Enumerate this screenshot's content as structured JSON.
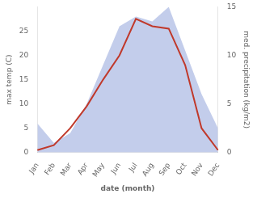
{
  "chart_data": {
    "type": "line",
    "xlabel": "date (month)",
    "ylabel": "max temp (C)",
    "y2label": "med. precipitation (kg/m2)",
    "categories": [
      "Jan",
      "Feb",
      "Mar",
      "Apr",
      "May",
      "Jun",
      "Jul",
      "Aug",
      "Sep",
      "Oct",
      "Nov",
      "Dec"
    ],
    "series": [
      {
        "type": "area",
        "color": "#b8c4e8",
        "axis": "y2",
        "values": [
          3.0,
          1.0,
          2.0,
          5.0,
          9.0,
          13.0,
          14.0,
          13.5,
          15.0,
          10.5,
          6.0,
          2.5
        ]
      },
      {
        "type": "line",
        "color": "#c0392b",
        "values": [
          0.5,
          1.5,
          5.0,
          9.5,
          15.0,
          20.0,
          27.5,
          26.0,
          25.5,
          18.0,
          5.0,
          0.5
        ]
      }
    ],
    "ylim": [
      0,
      30
    ],
    "yticks": [
      0,
      5,
      10,
      15,
      20,
      25
    ],
    "y2lim": [
      0,
      15
    ],
    "y2ticks": [
      0,
      5,
      10,
      15
    ],
    "grid": false
  }
}
